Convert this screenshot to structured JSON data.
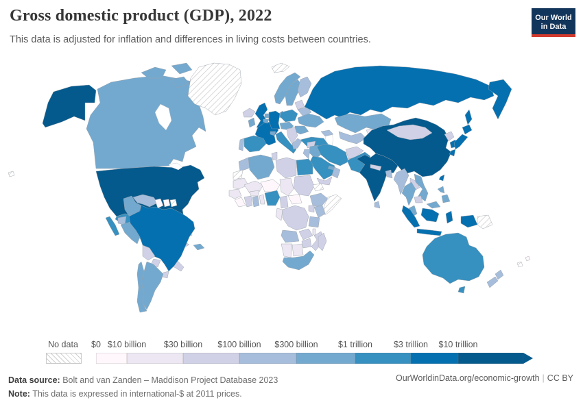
{
  "header": {
    "title": "Gross domestic product (GDP), 2022",
    "subtitle": "This data is adjusted for inflation and differences in living costs between countries."
  },
  "logo": {
    "line1": "Our World",
    "line2": "in Data",
    "bg": "#12355b",
    "accent": "#d23a2e"
  },
  "footer": {
    "source_label": "Data source:",
    "source_text": " Bolt and van Zanden – Maddison Project Database 2023",
    "note_label": "Note:",
    "note_text": " This data is expressed in international-$ at 2011 prices.",
    "link": "OurWorldinData.org/economic-growth",
    "license": "CC BY"
  },
  "chart_data": {
    "type": "choropleth-map",
    "title": "Gross domestic product (GDP), 2022",
    "year": 2022,
    "unit": "international-$ at 2011 prices",
    "legend": {
      "no_data_label": "No data",
      "labels": [
        "$0",
        "$10 billion",
        "$30 billion",
        "$100 billion",
        "$300 billion",
        "$1 trillion",
        "$3 trillion",
        "$10 trillion"
      ],
      "colors": [
        "#fff7fb",
        "#ece7f2",
        "#d0d1e6",
        "#a6bddb",
        "#74a9cf",
        "#3690c0",
        "#0570b0",
        "#045a8d"
      ],
      "bin_labels": [
        "$0–$10 billion",
        "$10–$30 billion",
        "$30–$100 billion",
        "$100–$300 billion",
        "$300 billion–$1 trillion",
        "$1–$3 trillion",
        "$3–$10 trillion",
        "More than $10 trillion"
      ],
      "position": "bottom"
    },
    "countries": [
      {
        "id": "usa",
        "name": "United States",
        "bin": 7
      },
      {
        "id": "canada",
        "name": "Canada",
        "bin": 4
      },
      {
        "id": "greenland",
        "name": "Greenland",
        "bin": null
      },
      {
        "id": "mexico",
        "name": "Mexico",
        "bin": 5
      },
      {
        "id": "guatemala",
        "name": "Guatemala",
        "bin": 4
      },
      {
        "id": "central-america",
        "name": "Central America",
        "bin": 2
      },
      {
        "id": "cuba",
        "name": "Cuba",
        "bin": 2
      },
      {
        "id": "bahamas",
        "name": "Bahamas",
        "bin": 1
      },
      {
        "id": "hispaniola",
        "name": "Dominican Republic",
        "bin": 4
      },
      {
        "id": "venezuela",
        "name": "Venezuela",
        "bin": 3
      },
      {
        "id": "colombia",
        "name": "Colombia",
        "bin": 4
      },
      {
        "id": "ecuador",
        "name": "Ecuador",
        "bin": 3
      },
      {
        "id": "peru",
        "name": "Peru",
        "bin": 4
      },
      {
        "id": "guyana",
        "name": "Guyana",
        "bin": 0
      },
      {
        "id": "suriname",
        "name": "Suriname",
        "bin": 0
      },
      {
        "id": "french-guiana",
        "name": "French Guiana",
        "bin": null
      },
      {
        "id": "brazil",
        "name": "Brazil",
        "bin": 6
      },
      {
        "id": "bolivia",
        "name": "Bolivia",
        "bin": 2
      },
      {
        "id": "paraguay",
        "name": "Paraguay",
        "bin": 2
      },
      {
        "id": "uruguay",
        "name": "Uruguay",
        "bin": 2
      },
      {
        "id": "argentina",
        "name": "Argentina",
        "bin": 4
      },
      {
        "id": "chile",
        "name": "Chile",
        "bin": 4
      },
      {
        "id": "iceland",
        "name": "Iceland",
        "bin": 2
      },
      {
        "id": "uk",
        "name": "United Kingdom",
        "bin": 6
      },
      {
        "id": "ireland",
        "name": "Ireland",
        "bin": 4
      },
      {
        "id": "norway",
        "name": "Norway",
        "bin": 4
      },
      {
        "id": "sweden",
        "name": "Sweden",
        "bin": 4
      },
      {
        "id": "finland",
        "name": "Finland",
        "bin": 3
      },
      {
        "id": "denmark",
        "name": "Denmark",
        "bin": 4
      },
      {
        "id": "france",
        "name": "France",
        "bin": 6
      },
      {
        "id": "spain",
        "name": "Spain",
        "bin": 5
      },
      {
        "id": "portugal",
        "name": "Portugal",
        "bin": 3
      },
      {
        "id": "germany",
        "name": "Germany",
        "bin": 6
      },
      {
        "id": "netherlands",
        "name": "Netherlands",
        "bin": 4
      },
      {
        "id": "belgium",
        "name": "Belgium",
        "bin": 4
      },
      {
        "id": "switzerland",
        "name": "Switzerland",
        "bin": 4
      },
      {
        "id": "italy",
        "name": "Italy",
        "bin": 5
      },
      {
        "id": "central-europe",
        "name": "Austria, Czechia & Hungary",
        "bin": 4
      },
      {
        "id": "poland",
        "name": "Poland",
        "bin": 5
      },
      {
        "id": "baltics",
        "name": "Baltic states",
        "bin": 2
      },
      {
        "id": "belarus",
        "name": "Belarus",
        "bin": 3
      },
      {
        "id": "ukraine",
        "name": "Ukraine",
        "bin": 4
      },
      {
        "id": "romania",
        "name": "Romania",
        "bin": 4
      },
      {
        "id": "balkans",
        "name": "Balkans",
        "bin": 2
      },
      {
        "id": "greece",
        "name": "Greece",
        "bin": 3
      },
      {
        "id": "russia",
        "name": "Russia",
        "bin": 6
      },
      {
        "id": "svalbard",
        "name": "Svalbard",
        "bin": null
      },
      {
        "id": "turkey",
        "name": "Turkey",
        "bin": 5
      },
      {
        "id": "caucasus",
        "name": "Caucasus",
        "bin": 3
      },
      {
        "id": "kazakhstan",
        "name": "Kazakhstan",
        "bin": 4
      },
      {
        "id": "uzbek-turkmen",
        "name": "Uzbekistan & Turkmenistan",
        "bin": 3
      },
      {
        "id": "kyrgyz-tajik",
        "name": "Kyrgyzstan & Tajikistan",
        "bin": 1
      },
      {
        "id": "iran",
        "name": "Iran",
        "bin": 5
      },
      {
        "id": "iraq",
        "name": "Iraq",
        "bin": 4
      },
      {
        "id": "syria",
        "name": "Syria",
        "bin": 2
      },
      {
        "id": "israel-jordan",
        "name": "Israel & Jordan",
        "bin": 3
      },
      {
        "id": "saudi-arabia",
        "name": "Saudi Arabia",
        "bin": 5
      },
      {
        "id": "yemen",
        "name": "Yemen",
        "bin": 2
      },
      {
        "id": "oman",
        "name": "Oman",
        "bin": 3
      },
      {
        "id": "uae",
        "name": "United Arab Emirates",
        "bin": 4
      },
      {
        "id": "afghanistan",
        "name": "Afghanistan",
        "bin": 2
      },
      {
        "id": "pakistan",
        "name": "Pakistan",
        "bin": 5
      },
      {
        "id": "india",
        "name": "India",
        "bin": 7
      },
      {
        "id": "nepal",
        "name": "Nepal",
        "bin": 2
      },
      {
        "id": "bangladesh",
        "name": "Bangladesh",
        "bin": 3
      },
      {
        "id": "sri-lanka",
        "name": "Sri Lanka",
        "bin": 3
      },
      {
        "id": "china",
        "name": "China",
        "bin": 7
      },
      {
        "id": "mongolia",
        "name": "Mongolia",
        "bin": 2
      },
      {
        "id": "north-korea",
        "name": "North Korea",
        "bin": 2
      },
      {
        "id": "south-korea",
        "name": "South Korea",
        "bin": 6
      },
      {
        "id": "japan",
        "name": "Japan",
        "bin": 6
      },
      {
        "id": "taiwan",
        "name": "Taiwan",
        "bin": 6
      },
      {
        "id": "myanmar",
        "name": "Myanmar",
        "bin": 3
      },
      {
        "id": "thailand",
        "name": "Thailand",
        "bin": 4
      },
      {
        "id": "laos",
        "name": "Laos",
        "bin": 2
      },
      {
        "id": "vietnam",
        "name": "Vietnam",
        "bin": 4
      },
      {
        "id": "cambodia",
        "name": "Cambodia",
        "bin": 2
      },
      {
        "id": "malaysia",
        "name": "Malaysia",
        "bin": 4
      },
      {
        "id": "philippines",
        "name": "Philippines",
        "bin": 4
      },
      {
        "id": "indonesia",
        "name": "Indonesia",
        "bin": 6
      },
      {
        "id": "papua-new-guinea",
        "name": "Papua New Guinea",
        "bin": null
      },
      {
        "id": "australia",
        "name": "Australia",
        "bin": 5
      },
      {
        "id": "new-zealand",
        "name": "New Zealand",
        "bin": 3
      },
      {
        "id": "new-caledonia",
        "name": "New Caledonia",
        "bin": null
      },
      {
        "id": "fiji",
        "name": "Fiji",
        "bin": 0
      },
      {
        "id": "pacific-islands",
        "name": "Pacific islands",
        "bin": null
      },
      {
        "id": "morocco",
        "name": "Morocco",
        "bin": 3
      },
      {
        "id": "western-sahara",
        "name": "Western Sahara",
        "bin": null
      },
      {
        "id": "algeria",
        "name": "Algeria",
        "bin": 4
      },
      {
        "id": "tunisia",
        "name": "Tunisia",
        "bin": 2
      },
      {
        "id": "libya",
        "name": "Libya",
        "bin": 2
      },
      {
        "id": "egypt",
        "name": "Egypt",
        "bin": 5
      },
      {
        "id": "mauritania",
        "name": "Mauritania",
        "bin": 1
      },
      {
        "id": "mali",
        "name": "Mali",
        "bin": 1
      },
      {
        "id": "niger",
        "name": "Niger",
        "bin": 0
      },
      {
        "id": "chad",
        "name": "Chad",
        "bin": 1
      },
      {
        "id": "sudan",
        "name": "Sudan",
        "bin": 2
      },
      {
        "id": "eritrea",
        "name": "Eritrea",
        "bin": null
      },
      {
        "id": "senegal",
        "name": "Senegal",
        "bin": 1
      },
      {
        "id": "guinea",
        "name": "Guinea",
        "bin": 0
      },
      {
        "id": "ivory-coast",
        "name": "Côte d'Ivoire",
        "bin": 2
      },
      {
        "id": "burkina-faso",
        "name": "Burkina Faso",
        "bin": 1
      },
      {
        "id": "ghana",
        "name": "Ghana",
        "bin": 3
      },
      {
        "id": "benin-togo",
        "name": "Benin & Togo",
        "bin": 1
      },
      {
        "id": "nigeria",
        "name": "Nigeria",
        "bin": 5
      },
      {
        "id": "cameroon",
        "name": "Cameroon",
        "bin": 2
      },
      {
        "id": "central-african-republic",
        "name": "Central African Republic",
        "bin": 0
      },
      {
        "id": "ethiopia",
        "name": "Ethiopia",
        "bin": 3
      },
      {
        "id": "somalia",
        "name": "Somalia",
        "bin": null
      },
      {
        "id": "kenya",
        "name": "Kenya",
        "bin": 3
      },
      {
        "id": "uganda",
        "name": "Uganda",
        "bin": 2
      },
      {
        "id": "drc",
        "name": "Democratic Republic of Congo",
        "bin": 2
      },
      {
        "id": "congo-gabon",
        "name": "Congo & Gabon",
        "bin": 1
      },
      {
        "id": "tanzania",
        "name": "Tanzania",
        "bin": 3
      },
      {
        "id": "angola",
        "name": "Angola",
        "bin": 3
      },
      {
        "id": "zambia",
        "name": "Zambia",
        "bin": 2
      },
      {
        "id": "malawi",
        "name": "Malawi",
        "bin": 1
      },
      {
        "id": "mozambique",
        "name": "Mozambique",
        "bin": 2
      },
      {
        "id": "zimbabwe",
        "name": "Zimbabwe",
        "bin": 2
      },
      {
        "id": "namibia",
        "name": "Namibia",
        "bin": 1
      },
      {
        "id": "botswana",
        "name": "Botswana",
        "bin": 1
      },
      {
        "id": "south-africa",
        "name": "South Africa",
        "bin": 4
      },
      {
        "id": "madagascar",
        "name": "Madagascar",
        "bin": 2
      }
    ]
  }
}
